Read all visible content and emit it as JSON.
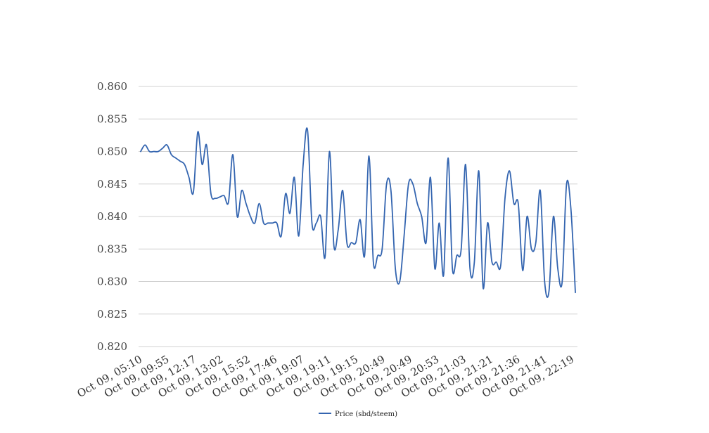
{
  "chart_data": {
    "type": "line",
    "title": "",
    "xlabel": "",
    "ylabel": "",
    "ylim": [
      0.82,
      0.86
    ],
    "yticks": [
      "0.820",
      "0.825",
      "0.830",
      "0.835",
      "0.840",
      "0.845",
      "0.850",
      "0.855",
      "0.860"
    ],
    "xtick_labels": [
      "Oct 09, 05:10",
      "Oct 09, 09:55",
      "Oct 09, 12:17",
      "Oct 09, 13:02",
      "Oct 09, 15:52",
      "Oct 09, 17:46",
      "Oct 09, 19:07",
      "Oct 09, 19:11",
      "Oct 09, 19:15",
      "Oct 09, 20:49",
      "Oct 09, 20:49",
      "Oct 09, 20:53",
      "Oct 09, 21:03",
      "Oct 09, 21:21",
      "Oct 09, 21:36",
      "Oct 09, 21:41",
      "Oct 09, 22:19"
    ],
    "grid": true,
    "legend_position": "bottom-center",
    "colors": {
      "series": "#3465b0",
      "grid": "#d0d0d0"
    },
    "series": [
      {
        "name": "Price (sbd/steem)",
        "values": [
          0.85,
          0.851,
          0.85,
          0.85,
          0.85,
          0.8505,
          0.851,
          0.8495,
          0.849,
          0.8485,
          0.848,
          0.846,
          0.8437,
          0.853,
          0.848,
          0.851,
          0.8435,
          0.8428,
          0.843,
          0.8432,
          0.8422,
          0.8495,
          0.84,
          0.844,
          0.842,
          0.84,
          0.839,
          0.842,
          0.839,
          0.839,
          0.839,
          0.839,
          0.837,
          0.8435,
          0.8405,
          0.846,
          0.837,
          0.848,
          0.8533,
          0.839,
          0.839,
          0.84,
          0.8338,
          0.85,
          0.8355,
          0.838,
          0.844,
          0.8358,
          0.836,
          0.836,
          0.8395,
          0.834,
          0.8493,
          0.833,
          0.834,
          0.835,
          0.845,
          0.844,
          0.832,
          0.83,
          0.837,
          0.845,
          0.845,
          0.842,
          0.84,
          0.836,
          0.846,
          0.832,
          0.839,
          0.831,
          0.849,
          0.832,
          0.834,
          0.835,
          0.848,
          0.832,
          0.833,
          0.847,
          0.829,
          0.839,
          0.833,
          0.833,
          0.8325,
          0.843,
          0.847,
          0.842,
          0.842,
          0.8317,
          0.84,
          0.835,
          0.836,
          0.844,
          0.83,
          0.8285,
          0.84,
          0.832,
          0.83,
          0.845,
          0.841,
          0.8283
        ]
      }
    ]
  }
}
